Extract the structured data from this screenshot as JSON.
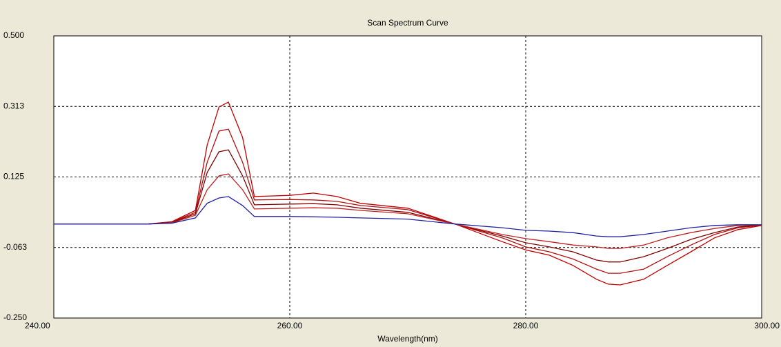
{
  "chart_data": {
    "type": "line",
    "title": "Scan Spectrum Curve",
    "x_label": "Wavelength(nm)",
    "x": [
      240,
      248,
      250,
      252,
      253,
      254,
      254.8,
      256,
      257,
      260,
      262,
      264,
      266,
      270,
      274,
      278,
      280,
      282,
      284,
      286,
      287,
      288,
      290,
      292,
      294,
      296,
      298,
      300
    ],
    "series": [
      {
        "color": "#c00000",
        "values": [
          0,
          0,
          0.006,
          0.036,
          0.21,
          0.311,
          0.324,
          0.23,
          0.073,
          0.076,
          0.082,
          0.073,
          0.055,
          0.042,
          0,
          -0.047,
          -0.069,
          -0.083,
          -0.11,
          -0.147,
          -0.16,
          -0.162,
          -0.147,
          -0.11,
          -0.074,
          -0.037,
          -0.015,
          -0.004
        ]
      },
      {
        "color": "#b01010",
        "values": [
          0,
          0,
          0.005,
          0.031,
          0.164,
          0.247,
          0.252,
          0.164,
          0.064,
          0.065,
          0.064,
          0.06,
          0.049,
          0.038,
          0,
          -0.037,
          -0.061,
          -0.074,
          -0.093,
          -0.12,
          -0.131,
          -0.131,
          -0.12,
          -0.087,
          -0.056,
          -0.028,
          -0.01,
          -0.003
        ]
      },
      {
        "color": "#800000",
        "values": [
          0,
          0,
          0.004,
          0.027,
          0.137,
          0.192,
          0.197,
          0.128,
          0.051,
          0.053,
          0.054,
          0.051,
          0.042,
          0.031,
          0,
          -0.032,
          -0.05,
          -0.061,
          -0.074,
          -0.096,
          -0.101,
          -0.101,
          -0.087,
          -0.065,
          -0.041,
          -0.023,
          -0.008,
          -0.003
        ]
      },
      {
        "color": "#c02020",
        "values": [
          0,
          0,
          0.003,
          0.023,
          0.091,
          0.128,
          0.133,
          0.091,
          0.04,
          0.042,
          0.043,
          0.042,
          0.036,
          0.027,
          0,
          -0.028,
          -0.039,
          -0.047,
          -0.056,
          -0.061,
          -0.065,
          -0.065,
          -0.056,
          -0.037,
          -0.023,
          -0.012,
          -0.004,
          -0.003
        ]
      },
      {
        "color": "#2020a0",
        "values": [
          0,
          0,
          0.002,
          0.016,
          0.055,
          0.069,
          0.073,
          0.049,
          0.02,
          0.02,
          0.019,
          0.018,
          0.016,
          0.013,
          0,
          -0.01,
          -0.017,
          -0.019,
          -0.023,
          -0.032,
          -0.034,
          -0.034,
          -0.028,
          -0.019,
          -0.01,
          -0.004,
          -0.002,
          -0.002
        ]
      }
    ],
    "xlim": [
      240,
      300
    ],
    "xticks": [
      {
        "value": 240,
        "label": "240.00"
      },
      {
        "value": 260,
        "label": "260.00"
      },
      {
        "value": 280,
        "label": "280.00"
      },
      {
        "value": 300,
        "label": "300.00"
      }
    ],
    "ylim": [
      -0.25,
      0.5
    ],
    "yticks": [
      {
        "value": -0.25,
        "label": "-0.250"
      },
      {
        "value": -0.0625,
        "label": "-0.063"
      },
      {
        "value": 0.125,
        "label": "0.125"
      },
      {
        "value": 0.3125,
        "label": "0.313"
      },
      {
        "value": 0.5,
        "label": "0.500"
      }
    ],
    "grid": true
  }
}
